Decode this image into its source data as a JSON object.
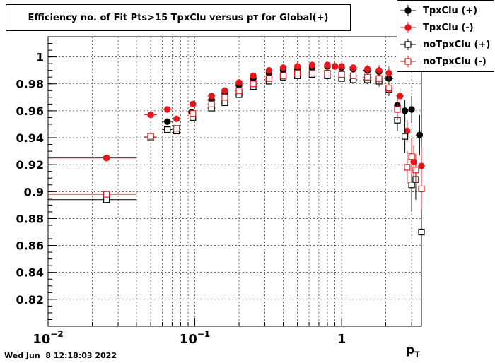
{
  "chart_data": {
    "type": "scatter",
    "title_main": "Efficiency no. of Fit Pts>15 TpxClu versus p",
    "title_sub": "T",
    "title_tail": " for Global(+)",
    "xlabel_main": "p",
    "xlabel_sub": "T",
    "xscale": "log",
    "xlim": [
      0.01,
      3.5
    ],
    "ylim": [
      0.8,
      1.015
    ],
    "grid": true,
    "legend_position": "top-right",
    "y_ticks": [
      "0.82",
      "0.84",
      "0.86",
      "0.88",
      "0.9",
      "0.92",
      "0.94",
      "0.96",
      "0.98",
      "1"
    ],
    "x_ticks": [
      {
        "value": 0.01,
        "base": "10",
        "exp": "−2"
      },
      {
        "value": 0.1,
        "base": "10",
        "exp": "−1"
      },
      {
        "value": 1,
        "base": "1",
        "exp": ""
      }
    ],
    "series": [
      {
        "name": "TpxClu (+)",
        "color": "#000000",
        "marker": "filled-circle",
        "x": [
          0.025,
          0.065,
          0.095,
          0.13,
          0.16,
          0.2,
          0.25,
          0.32,
          0.4,
          0.5,
          0.63,
          0.8,
          0.9,
          1.0,
          1.2,
          1.5,
          1.8,
          2.1,
          2.4,
          2.7,
          3.0,
          3.4
        ],
        "y": [
          0.925,
          0.952,
          0.959,
          0.968,
          0.973,
          0.979,
          0.984,
          0.988,
          0.99,
          0.991,
          0.992,
          0.993,
          0.993,
          0.992,
          0.991,
          0.99,
          0.989,
          0.984,
          0.964,
          0.96,
          0.961,
          0.942
        ],
        "xerr": [
          0.015,
          0.005,
          0.005,
          0.008,
          0.008,
          0.012,
          0.012,
          0.015,
          0.02,
          0.025,
          0.03,
          0.04,
          0.04,
          0.05,
          0.08,
          0.1,
          0.1,
          0.15,
          0.12,
          0.12,
          0.15,
          0.2
        ],
        "yerr": [
          0.0,
          0.002,
          0.002,
          0.002,
          0.002,
          0.002,
          0.002,
          0.002,
          0.002,
          0.002,
          0.002,
          0.002,
          0.002,
          0.002,
          0.002,
          0.003,
          0.004,
          0.005,
          0.006,
          0.008,
          0.01,
          0.015
        ]
      },
      {
        "name": "TpxClu (-)",
        "color": "#e8161b",
        "marker": "filled-circle",
        "x": [
          0.025,
          0.05,
          0.065,
          0.075,
          0.097,
          0.13,
          0.16,
          0.2,
          0.25,
          0.32,
          0.4,
          0.5,
          0.63,
          0.8,
          0.9,
          1.0,
          1.2,
          1.5,
          1.8,
          2.1,
          2.5,
          2.8,
          3.1,
          3.5
        ],
        "y": [
          0.925,
          0.957,
          0.961,
          0.954,
          0.965,
          0.971,
          0.975,
          0.981,
          0.986,
          0.99,
          0.992,
          0.993,
          0.994,
          0.994,
          0.993,
          0.993,
          0.992,
          0.991,
          0.99,
          0.988,
          0.971,
          0.945,
          0.922,
          0.919
        ],
        "xerr": [
          0.015,
          0.005,
          0.005,
          0.004,
          0.005,
          0.008,
          0.008,
          0.012,
          0.012,
          0.015,
          0.02,
          0.025,
          0.03,
          0.04,
          0.04,
          0.05,
          0.08,
          0.1,
          0.1,
          0.12,
          0.15,
          0.12,
          0.12,
          0.2
        ],
        "yerr": [
          0.0,
          0.002,
          0.002,
          0.002,
          0.002,
          0.002,
          0.002,
          0.002,
          0.002,
          0.002,
          0.002,
          0.002,
          0.002,
          0.002,
          0.002,
          0.002,
          0.002,
          0.003,
          0.004,
          0.005,
          0.006,
          0.008,
          0.012,
          0.014
        ]
      },
      {
        "name": "noTpxClu (+)",
        "color": "#000000",
        "marker": "open-square",
        "x": [
          0.025,
          0.05,
          0.065,
          0.075,
          0.097,
          0.13,
          0.16,
          0.2,
          0.25,
          0.32,
          0.4,
          0.5,
          0.63,
          0.8,
          1.0,
          1.2,
          1.5,
          1.8,
          2.1,
          2.4,
          2.7,
          3.0,
          3.2,
          3.5
        ],
        "y": [
          0.894,
          0.94,
          0.946,
          0.945,
          0.955,
          0.962,
          0.966,
          0.972,
          0.978,
          0.982,
          0.985,
          0.986,
          0.987,
          0.986,
          0.984,
          0.983,
          0.983,
          0.982,
          0.976,
          0.953,
          0.941,
          0.905,
          0.909,
          0.87
        ],
        "xerr": [
          0.015,
          0.005,
          0.005,
          0.004,
          0.005,
          0.008,
          0.008,
          0.012,
          0.012,
          0.015,
          0.02,
          0.025,
          0.03,
          0.04,
          0.05,
          0.08,
          0.1,
          0.1,
          0.12,
          0.12,
          0.12,
          0.15,
          0.15,
          0.2
        ],
        "yerr": [
          0.0,
          0.002,
          0.002,
          0.002,
          0.002,
          0.002,
          0.002,
          0.002,
          0.002,
          0.002,
          0.002,
          0.002,
          0.002,
          0.002,
          0.002,
          0.002,
          0.003,
          0.004,
          0.005,
          0.008,
          0.012,
          0.02,
          0.015,
          0.016
        ]
      },
      {
        "name": "noTpxClu (-)",
        "color": "#e8161b",
        "marker": "open-square",
        "x": [
          0.025,
          0.05,
          0.075,
          0.097,
          0.13,
          0.16,
          0.2,
          0.25,
          0.32,
          0.4,
          0.5,
          0.63,
          0.8,
          1.0,
          1.2,
          1.5,
          1.8,
          2.1,
          2.4,
          2.8,
          3.0,
          3.2,
          3.5
        ],
        "y": [
          0.898,
          0.941,
          0.947,
          0.958,
          0.965,
          0.97,
          0.975,
          0.98,
          0.984,
          0.986,
          0.988,
          0.988,
          0.988,
          0.987,
          0.986,
          0.985,
          0.984,
          0.977,
          0.961,
          0.918,
          0.926,
          0.916,
          0.902
        ],
        "xerr": [
          0.015,
          0.005,
          0.004,
          0.005,
          0.008,
          0.008,
          0.012,
          0.012,
          0.015,
          0.02,
          0.025,
          0.03,
          0.04,
          0.05,
          0.08,
          0.1,
          0.1,
          0.12,
          0.12,
          0.12,
          0.15,
          0.15,
          0.2
        ],
        "yerr": [
          0.0,
          0.002,
          0.002,
          0.002,
          0.002,
          0.002,
          0.002,
          0.002,
          0.002,
          0.002,
          0.002,
          0.002,
          0.002,
          0.002,
          0.002,
          0.003,
          0.004,
          0.005,
          0.008,
          0.012,
          0.014,
          0.012,
          0.015
        ]
      }
    ]
  },
  "timestamp": "Wed Jun  8 12:18:03 2022"
}
